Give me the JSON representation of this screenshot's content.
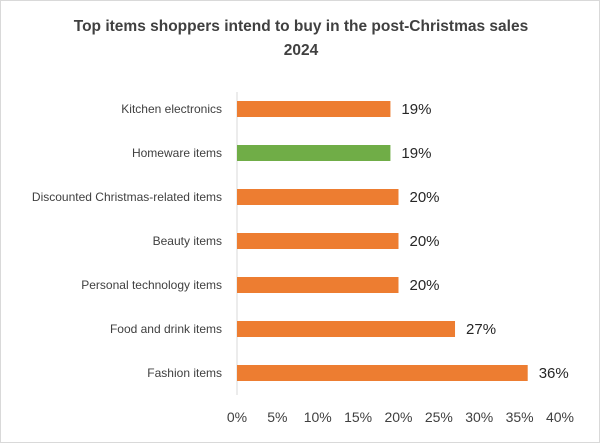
{
  "chart_data": {
    "type": "bar",
    "orientation": "horizontal",
    "title": "Top items shoppers intend to buy in the post-Christmas sales 2024",
    "categories": [
      "Kitchen electronics",
      "Homeware items",
      "Discounted Christmas-related items",
      "Beauty items",
      "Personal technology items",
      "Food and drink items",
      "Fashion items"
    ],
    "values": [
      19,
      19,
      20,
      20,
      20,
      27,
      36
    ],
    "data_labels": [
      "19%",
      "19%",
      "20%",
      "20%",
      "20%",
      "27%",
      "36%"
    ],
    "colors": [
      "#ED7D31",
      "#70AD47",
      "#ED7D31",
      "#ED7D31",
      "#ED7D31",
      "#ED7D31",
      "#ED7D31"
    ],
    "xlim": [
      0,
      40
    ],
    "xticks": [
      0,
      5,
      10,
      15,
      20,
      25,
      30,
      35,
      40
    ],
    "xtick_labels": [
      "0%",
      "5%",
      "10%",
      "15%",
      "20%",
      "25%",
      "30%",
      "35%",
      "40%"
    ],
    "grid": false,
    "legend": "none"
  }
}
